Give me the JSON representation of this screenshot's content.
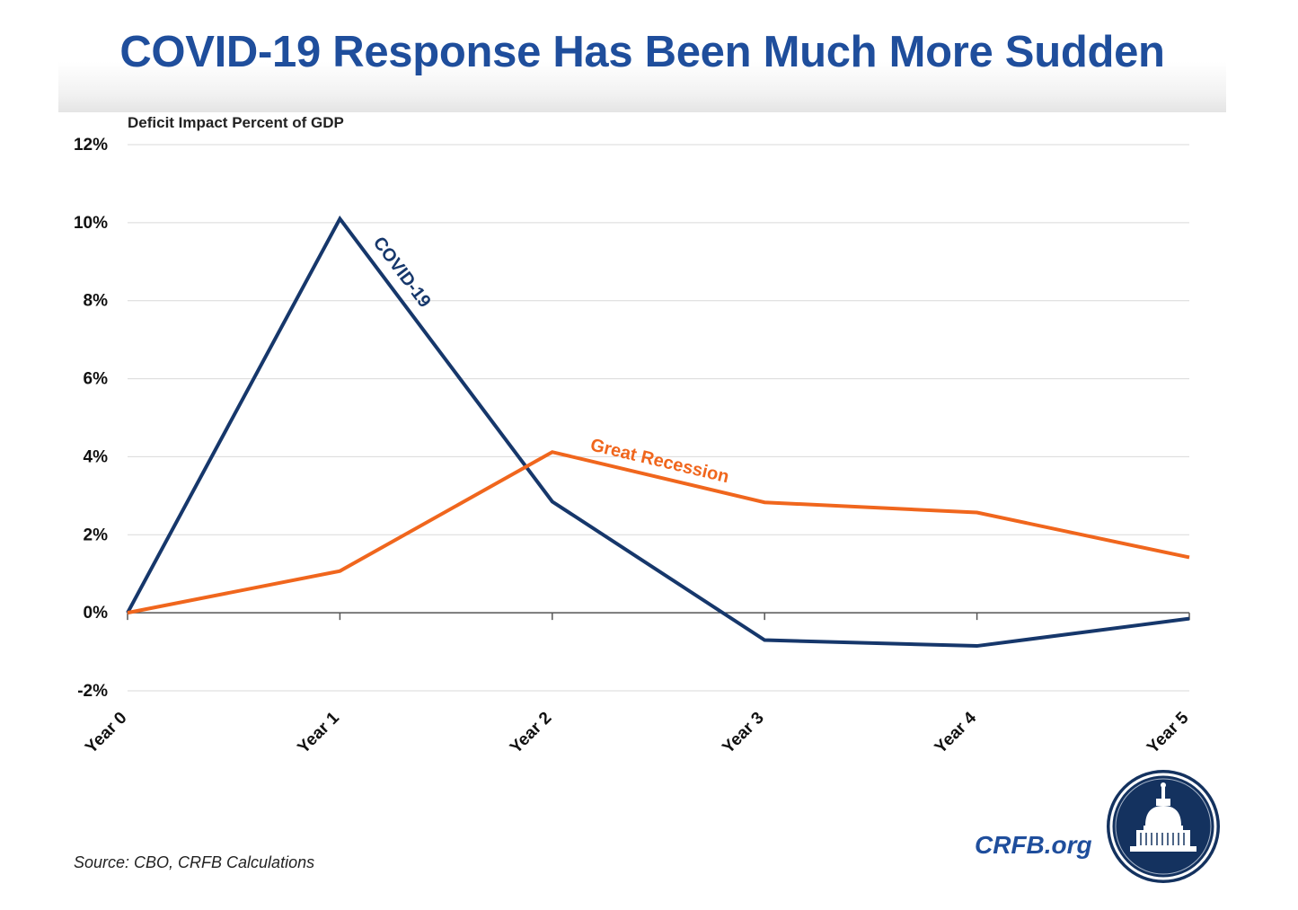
{
  "header": {
    "title": "COVID-19 Response Has Been Much More Sudden"
  },
  "footer": {
    "source": "Source: CBO, CRFB Calculations",
    "brand": "CRFB.org"
  },
  "chart_data": {
    "type": "line",
    "title": "COVID-19 Response Has Been Much More Sudden",
    "ylabel": "Deficit Impact Percent of GDP",
    "xlabel": "",
    "categories": [
      "Year 0",
      "Year 1",
      "Year 2",
      "Year 3",
      "Year 4",
      "Year 5"
    ],
    "ylim": [
      -2,
      12
    ],
    "yticks": [
      -2,
      0,
      2,
      4,
      6,
      8,
      10,
      12
    ],
    "ytick_labels": [
      "-2%",
      "0%",
      "2%",
      "4%",
      "6%",
      "8%",
      "10%",
      "12%"
    ],
    "grid": true,
    "series": [
      {
        "name": "COVID-19",
        "color": "#16376b",
        "values": [
          0,
          10.1,
          2.85,
          -0.7,
          -0.85,
          -0.15
        ]
      },
      {
        "name": "Great Recession",
        "color": "#f0661d",
        "values": [
          0,
          1.07,
          4.12,
          2.83,
          2.57,
          1.42
        ]
      }
    ]
  }
}
